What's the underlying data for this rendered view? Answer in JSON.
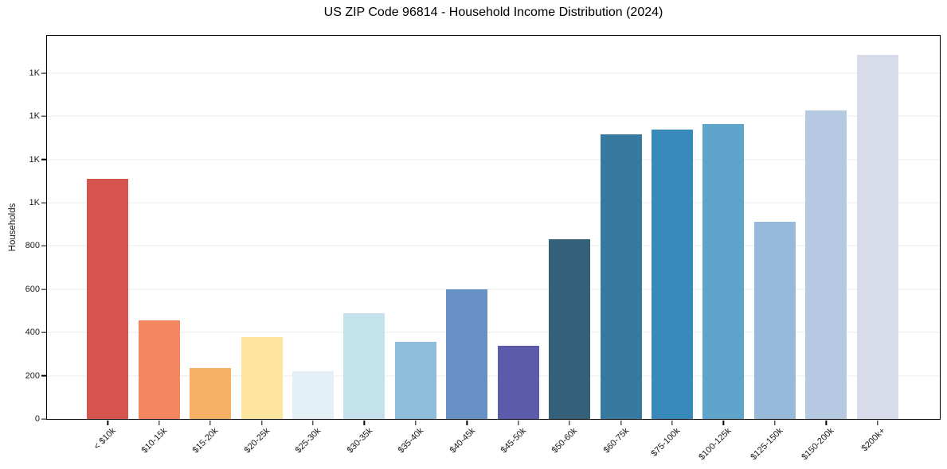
{
  "chart_data": {
    "type": "bar",
    "title": "US ZIP Code 96814 - Household Income Distribution (2024)",
    "xlabel": "",
    "ylabel": "Households",
    "categories": [
      "< $10k",
      "$10-15k",
      "$15-20k",
      "$20-25k",
      "$25-30k",
      "$30-35k",
      "$35-40k",
      "$40-45k",
      "$45-50k",
      "$50-60k",
      "$60-75k",
      "$75-100k",
      "$100-125k",
      "$125-150k",
      "$150-200k",
      "$200k+"
    ],
    "values": [
      1110,
      455,
      235,
      380,
      220,
      490,
      355,
      600,
      340,
      830,
      1315,
      1340,
      1365,
      910,
      1425,
      1685
    ],
    "bar_colors": [
      "#d5554e",
      "#f4875f",
      "#f7b166",
      "#fde59e",
      "#e3f0f6",
      "#c3e2ec",
      "#8fbedd",
      "#6791c5",
      "#5c5aab",
      "#35607a",
      "#37799f",
      "#388abd",
      "#5fa4ca",
      "#97badb",
      "#b5c9e2",
      "#d8dcea"
    ],
    "y_ticks": [
      {
        "value": 0,
        "label": "0"
      },
      {
        "value": 200,
        "label": "200"
      },
      {
        "value": 400,
        "label": "400"
      },
      {
        "value": 600,
        "label": "600"
      },
      {
        "value": 800,
        "label": "800"
      },
      {
        "value": 1000,
        "label": "1K"
      },
      {
        "value": 1200,
        "label": "1K"
      },
      {
        "value": 1400,
        "label": "1K"
      },
      {
        "value": 1600,
        "label": "1K"
      }
    ],
    "ylim": [
      0,
      1772
    ],
    "grid": "horizontal",
    "gridline_color": "#ebebeb",
    "legend": "none"
  }
}
